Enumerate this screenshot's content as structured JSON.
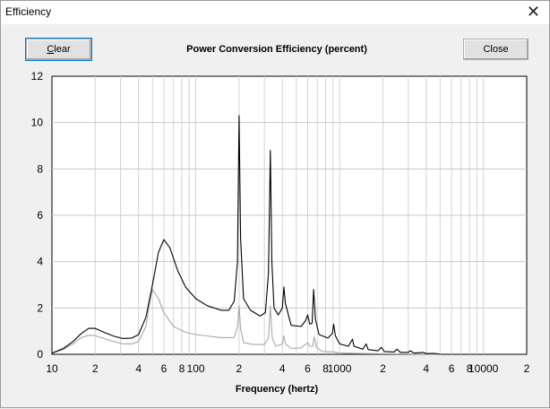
{
  "window": {
    "title": "Efficiency",
    "close_glyph": "✕"
  },
  "buttons": {
    "clear_accel": "C",
    "clear_rest": "lear",
    "close": "Close"
  },
  "chart_data": {
    "type": "line",
    "title": "Power Conversion Efficiency (percent)",
    "xlabel": "Frequency (hertz)",
    "ylabel": "",
    "x_scale": "log",
    "xlim": [
      10,
      20000
    ],
    "ylim": [
      0,
      12
    ],
    "y_ticks": [
      "0",
      "2",
      "4",
      "6",
      "8",
      "10",
      "12"
    ],
    "x_ticks": [
      {
        "v": 10,
        "t": "10"
      },
      {
        "v": 20,
        "t": "2"
      },
      {
        "v": 40,
        "t": "4"
      },
      {
        "v": 60,
        "t": "6"
      },
      {
        "v": 80,
        "t": "8"
      },
      {
        "v": 100,
        "t": "100"
      },
      {
        "v": 200,
        "t": "2"
      },
      {
        "v": 400,
        "t": "4"
      },
      {
        "v": 600,
        "t": "6"
      },
      {
        "v": 800,
        "t": "8"
      },
      {
        "v": 1000,
        "t": "1000"
      },
      {
        "v": 2000,
        "t": "2"
      },
      {
        "v": 4000,
        "t": "4"
      },
      {
        "v": 6000,
        "t": "6"
      },
      {
        "v": 8000,
        "t": "8"
      },
      {
        "v": 10000,
        "t": "10000"
      },
      {
        "v": 20000,
        "t": "2"
      }
    ],
    "grid": true,
    "series": [
      {
        "color": "#000000",
        "points": [
          [
            10,
            0.05
          ],
          [
            12,
            0.25
          ],
          [
            14,
            0.55
          ],
          [
            16,
            0.9
          ],
          [
            18,
            1.12
          ],
          [
            20,
            1.12
          ],
          [
            23,
            0.95
          ],
          [
            27,
            0.78
          ],
          [
            31,
            0.68
          ],
          [
            36,
            0.7
          ],
          [
            40,
            0.85
          ],
          [
            45,
            1.6
          ],
          [
            50,
            3.0
          ],
          [
            55,
            4.4
          ],
          [
            60,
            4.95
          ],
          [
            66,
            4.6
          ],
          [
            75,
            3.6
          ],
          [
            85,
            2.9
          ],
          [
            100,
            2.4
          ],
          [
            120,
            2.1
          ],
          [
            150,
            1.9
          ],
          [
            170,
            1.9
          ],
          [
            185,
            2.3
          ],
          [
            195,
            4.0
          ],
          [
            200,
            10.3
          ],
          [
            205,
            5.0
          ],
          [
            215,
            2.4
          ],
          [
            240,
            1.9
          ],
          [
            280,
            1.65
          ],
          [
            305,
            1.8
          ],
          [
            320,
            3.5
          ],
          [
            330,
            8.8
          ],
          [
            338,
            4.0
          ],
          [
            350,
            2.0
          ],
          [
            375,
            1.7
          ],
          [
            400,
            2.0
          ],
          [
            410,
            2.9
          ],
          [
            420,
            2.2
          ],
          [
            460,
            1.25
          ],
          [
            540,
            1.2
          ],
          [
            580,
            1.45
          ],
          [
            600,
            1.7
          ],
          [
            620,
            1.3
          ],
          [
            645,
            1.35
          ],
          [
            660,
            2.8
          ],
          [
            680,
            1.5
          ],
          [
            720,
            0.85
          ],
          [
            830,
            0.7
          ],
          [
            890,
            0.9
          ],
          [
            910,
            1.3
          ],
          [
            935,
            0.8
          ],
          [
            1000,
            0.45
          ],
          [
            1150,
            0.35
          ],
          [
            1230,
            0.65
          ],
          [
            1260,
            0.35
          ],
          [
            1450,
            0.22
          ],
          [
            1530,
            0.45
          ],
          [
            1580,
            0.2
          ],
          [
            1850,
            0.15
          ],
          [
            1950,
            0.3
          ],
          [
            2050,
            0.12
          ],
          [
            2400,
            0.1
          ],
          [
            2500,
            0.22
          ],
          [
            2650,
            0.08
          ],
          [
            3000,
            0.08
          ],
          [
            3100,
            0.15
          ],
          [
            3300,
            0.05
          ],
          [
            3800,
            0.08
          ],
          [
            4000,
            0.03
          ],
          [
            4600,
            0.04
          ],
          [
            5000,
            0.0
          ]
        ]
      },
      {
        "color": "#a8a8a8",
        "points": [
          [
            10,
            0.05
          ],
          [
            12,
            0.2
          ],
          [
            14,
            0.45
          ],
          [
            16,
            0.72
          ],
          [
            18,
            0.82
          ],
          [
            20,
            0.8
          ],
          [
            23,
            0.68
          ],
          [
            27,
            0.55
          ],
          [
            31,
            0.45
          ],
          [
            36,
            0.45
          ],
          [
            40,
            0.55
          ],
          [
            45,
            1.2
          ],
          [
            48,
            2.3
          ],
          [
            50,
            2.8
          ],
          [
            55,
            2.4
          ],
          [
            60,
            1.8
          ],
          [
            70,
            1.2
          ],
          [
            85,
            0.95
          ],
          [
            100,
            0.85
          ],
          [
            150,
            0.72
          ],
          [
            185,
            0.72
          ],
          [
            195,
            1.2
          ],
          [
            200,
            2.1
          ],
          [
            205,
            1.1
          ],
          [
            215,
            0.5
          ],
          [
            250,
            0.42
          ],
          [
            300,
            0.42
          ],
          [
            320,
            0.7
          ],
          [
            330,
            2.1
          ],
          [
            340,
            0.7
          ],
          [
            360,
            0.35
          ],
          [
            400,
            0.45
          ],
          [
            410,
            0.8
          ],
          [
            420,
            0.45
          ],
          [
            460,
            0.25
          ],
          [
            540,
            0.28
          ],
          [
            600,
            0.5
          ],
          [
            620,
            0.35
          ],
          [
            650,
            0.35
          ],
          [
            665,
            0.75
          ],
          [
            690,
            0.3
          ],
          [
            760,
            0.12
          ],
          [
            900,
            0.1
          ],
          [
            1000,
            0.05
          ],
          [
            1500,
            0.03
          ],
          [
            3000,
            0.01
          ],
          [
            5000,
            0.0
          ]
        ]
      }
    ]
  }
}
